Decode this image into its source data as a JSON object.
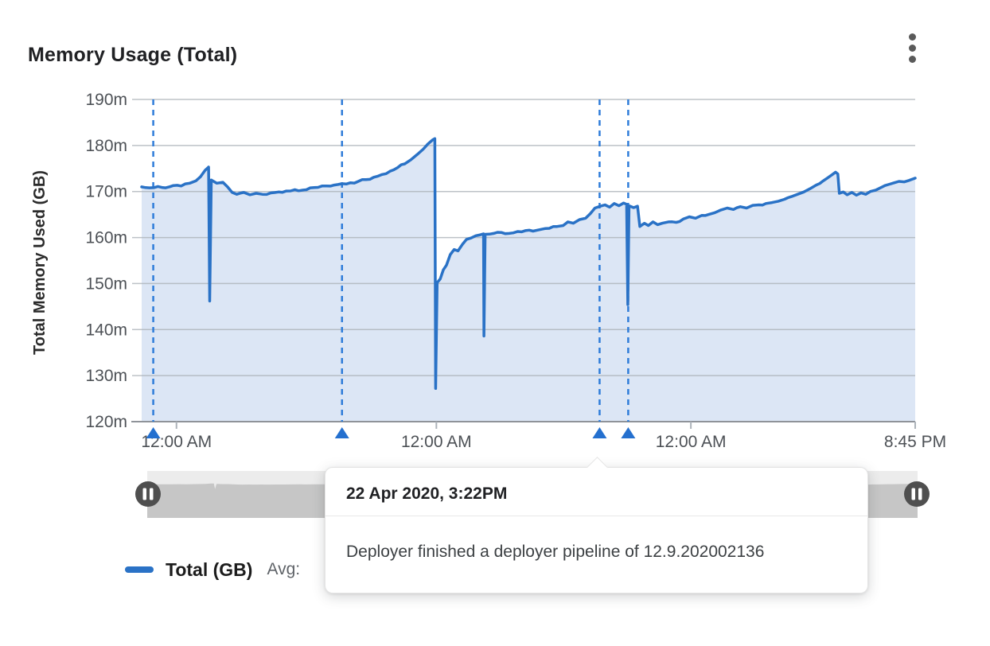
{
  "header": {
    "title": "Memory Usage (Total)",
    "menu_icon": "kebab-menu-icon"
  },
  "chart_data": {
    "type": "area",
    "title": "Memory Usage (Total)",
    "ylabel": "Total Memory Used (GB)",
    "xlabel": "",
    "ylim": [
      120,
      190
    ],
    "grid": true,
    "legend_position": "bottom",
    "y_ticks": [
      {
        "label": "190m",
        "value": 190
      },
      {
        "label": "180m",
        "value": 180
      },
      {
        "label": "170m",
        "value": 170
      },
      {
        "label": "160m",
        "value": 160
      },
      {
        "label": "150m",
        "value": 150
      },
      {
        "label": "140m",
        "value": 140
      },
      {
        "label": "130m",
        "value": 130
      },
      {
        "label": "120m",
        "value": 120
      }
    ],
    "x_ticks": [
      {
        "label": "12:00 AM",
        "pos": 0.045
      },
      {
        "label": "12:00 AM",
        "pos": 0.381
      },
      {
        "label": "12:00 AM",
        "pos": 0.71
      },
      {
        "label": "8:45 PM",
        "pos": 1.0
      }
    ],
    "annotations": [
      {
        "pos": 0.015,
        "type": "deployment"
      },
      {
        "pos": 0.259,
        "type": "deployment"
      },
      {
        "pos": 0.592,
        "type": "deployment",
        "active": true
      },
      {
        "pos": 0.629,
        "type": "deployment"
      }
    ],
    "series": [
      {
        "name": "Total (GB)",
        "points": [
          [
            0.0,
            171.0
          ],
          [
            0.01,
            170.8
          ],
          [
            0.021,
            171.1
          ],
          [
            0.031,
            170.8
          ],
          [
            0.041,
            171.3
          ],
          [
            0.051,
            171.2
          ],
          [
            0.062,
            171.8
          ],
          [
            0.07,
            172.3
          ],
          [
            0.076,
            173.2
          ],
          [
            0.082,
            174.6
          ],
          [
            0.086,
            175.2
          ],
          [
            0.0865,
            175.3
          ],
          [
            0.088,
            146.2
          ],
          [
            0.09,
            172.5
          ],
          [
            0.097,
            171.8
          ],
          [
            0.105,
            172.0
          ],
          [
            0.111,
            171.0
          ],
          [
            0.117,
            169.8
          ],
          [
            0.123,
            169.4
          ],
          [
            0.132,
            169.8
          ],
          [
            0.14,
            169.3
          ],
          [
            0.148,
            169.6
          ],
          [
            0.156,
            169.4
          ],
          [
            0.167,
            169.7
          ],
          [
            0.177,
            169.9
          ],
          [
            0.187,
            170.1
          ],
          [
            0.198,
            170.4
          ],
          [
            0.208,
            170.3
          ],
          [
            0.218,
            170.8
          ],
          [
            0.228,
            170.9
          ],
          [
            0.239,
            171.2
          ],
          [
            0.249,
            171.4
          ],
          [
            0.259,
            171.7
          ],
          [
            0.27,
            171.9
          ],
          [
            0.28,
            172.2
          ],
          [
            0.29,
            172.6
          ],
          [
            0.3,
            173.1
          ],
          [
            0.311,
            173.7
          ],
          [
            0.321,
            174.4
          ],
          [
            0.331,
            175.2
          ],
          [
            0.34,
            176.0
          ],
          [
            0.348,
            176.9
          ],
          [
            0.356,
            178.0
          ],
          [
            0.364,
            179.2
          ],
          [
            0.37,
            180.3
          ],
          [
            0.376,
            181.2
          ],
          [
            0.379,
            181.5
          ],
          [
            0.38,
            127.2
          ],
          [
            0.382,
            150.2
          ],
          [
            0.386,
            151.0
          ],
          [
            0.39,
            153.0
          ],
          [
            0.394,
            154.0
          ],
          [
            0.399,
            156.3
          ],
          [
            0.404,
            157.4
          ],
          [
            0.409,
            157.1
          ],
          [
            0.415,
            158.6
          ],
          [
            0.42,
            159.6
          ],
          [
            0.426,
            159.9
          ],
          [
            0.432,
            160.4
          ],
          [
            0.438,
            160.6
          ],
          [
            0.442,
            160.8
          ],
          [
            0.4425,
            138.6
          ],
          [
            0.444,
            160.7
          ],
          [
            0.455,
            160.9
          ],
          [
            0.465,
            161.1
          ],
          [
            0.475,
            160.9
          ],
          [
            0.486,
            161.3
          ],
          [
            0.496,
            161.5
          ],
          [
            0.506,
            161.4
          ],
          [
            0.517,
            161.8
          ],
          [
            0.527,
            162.0
          ],
          [
            0.537,
            162.4
          ],
          [
            0.545,
            162.6
          ],
          [
            0.551,
            163.4
          ],
          [
            0.558,
            163.1
          ],
          [
            0.566,
            163.9
          ],
          [
            0.574,
            164.2
          ],
          [
            0.58,
            165.2
          ],
          [
            0.586,
            166.4
          ],
          [
            0.593,
            166.8
          ],
          [
            0.599,
            167.1
          ],
          [
            0.605,
            166.6
          ],
          [
            0.611,
            167.4
          ],
          [
            0.617,
            166.9
          ],
          [
            0.623,
            167.5
          ],
          [
            0.627,
            167.2
          ],
          [
            0.6285,
            145.4
          ],
          [
            0.63,
            166.9
          ],
          [
            0.636,
            166.5
          ],
          [
            0.641,
            166.8
          ],
          [
            0.644,
            162.4
          ],
          [
            0.65,
            163.1
          ],
          [
            0.655,
            162.6
          ],
          [
            0.661,
            163.4
          ],
          [
            0.667,
            162.8
          ],
          [
            0.673,
            163.1
          ],
          [
            0.681,
            163.4
          ],
          [
            0.691,
            163.3
          ],
          [
            0.7,
            164.0
          ],
          [
            0.708,
            164.5
          ],
          [
            0.716,
            164.2
          ],
          [
            0.724,
            164.8
          ],
          [
            0.733,
            165.0
          ],
          [
            0.741,
            165.4
          ],
          [
            0.749,
            166.0
          ],
          [
            0.757,
            166.4
          ],
          [
            0.765,
            166.1
          ],
          [
            0.774,
            166.7
          ],
          [
            0.782,
            166.4
          ],
          [
            0.79,
            167.0
          ],
          [
            0.798,
            167.1
          ],
          [
            0.807,
            167.4
          ],
          [
            0.815,
            167.6
          ],
          [
            0.823,
            167.9
          ],
          [
            0.831,
            168.3
          ],
          [
            0.84,
            168.9
          ],
          [
            0.848,
            169.4
          ],
          [
            0.856,
            169.9
          ],
          [
            0.864,
            170.6
          ],
          [
            0.872,
            171.4
          ],
          [
            0.881,
            172.3
          ],
          [
            0.887,
            173.0
          ],
          [
            0.893,
            173.7
          ],
          [
            0.897,
            174.2
          ],
          [
            0.9,
            173.8
          ],
          [
            0.902,
            169.6
          ],
          [
            0.907,
            169.9
          ],
          [
            0.912,
            169.3
          ],
          [
            0.918,
            169.8
          ],
          [
            0.924,
            169.2
          ],
          [
            0.93,
            169.7
          ],
          [
            0.936,
            169.4
          ],
          [
            0.942,
            170.0
          ],
          [
            0.949,
            170.3
          ],
          [
            0.955,
            170.8
          ],
          [
            0.961,
            171.3
          ],
          [
            0.967,
            171.6
          ],
          [
            0.973,
            171.9
          ],
          [
            0.979,
            172.2
          ],
          [
            0.986,
            172.1
          ],
          [
            0.992,
            172.4
          ],
          [
            1.0,
            172.9
          ]
        ]
      }
    ]
  },
  "colors": {
    "line": "#2a72c6",
    "fill": "#dce6f5",
    "annotation_line": "#2e7cd9",
    "annotation_marker": "#2470cf",
    "grid": "#adb3ba",
    "axis": "#8f9399",
    "tick_label": "#4d5156",
    "brush_track": "#ececec",
    "brush_fill": "#c6c6c6",
    "brush_handle": "#4f4f4f"
  },
  "legend": {
    "label": "Total (GB)",
    "avg_label": "Avg:",
    "swatch_color": "#2a72c6"
  },
  "tooltip": {
    "timestamp": "22 Apr 2020, 3:22PM",
    "message": "Deployer finished a deployer pipeline of 12.9.202002136"
  },
  "brush": {
    "left_handle_icon": "pause-handle-icon",
    "right_handle_icon": "pause-handle-icon"
  }
}
